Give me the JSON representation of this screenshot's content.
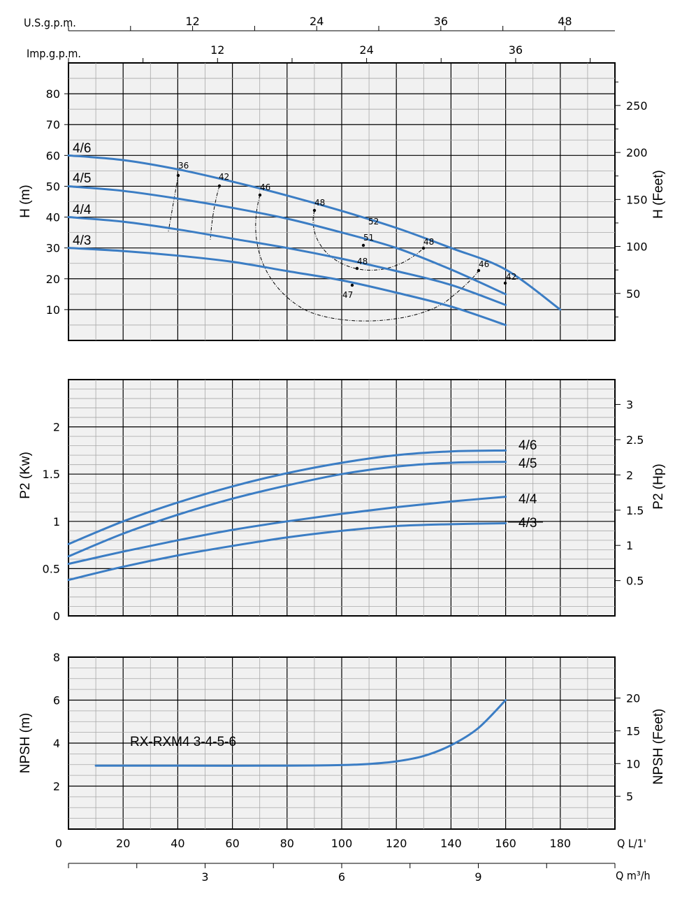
{
  "top_axes": {
    "us_gpm": {
      "label": "U.S.g.p.m.",
      "ticks": [
        "12",
        "24",
        "36",
        "48"
      ]
    },
    "imp_gpm": {
      "label": "Imp.g.p.m.",
      "ticks": [
        "12",
        "24",
        "36"
      ]
    }
  },
  "bottom_axes": {
    "q_lmin": {
      "label": "Q L/1'",
      "ticks": [
        "0",
        "20",
        "40",
        "60",
        "80",
        "100",
        "120",
        "140",
        "160",
        "180"
      ]
    },
    "q_m3h": {
      "label": "Q m³/h",
      "ticks": [
        "3",
        "6",
        "9"
      ]
    }
  },
  "chart_data": [
    {
      "type": "line",
      "panel": "head",
      "ylabel": "H (m)",
      "ylabel_right": "H (Feet)",
      "xlim": [
        0,
        200
      ],
      "ylim": [
        0,
        90
      ],
      "yticks": [
        10,
        20,
        30,
        40,
        50,
        60,
        70,
        80
      ],
      "yticks_right": [
        50,
        100,
        150,
        200,
        250
      ],
      "series": [
        {
          "name": "4/6",
          "x": [
            0,
            20,
            40,
            60,
            80,
            100,
            120,
            140,
            160,
            180
          ],
          "values": [
            60,
            58.5,
            55.5,
            51.5,
            47,
            42,
            36.5,
            30,
            23,
            10
          ]
        },
        {
          "name": "4/5",
          "x": [
            0,
            20,
            40,
            60,
            80,
            100,
            120,
            140,
            160
          ],
          "values": [
            50,
            48.5,
            46,
            43,
            39.5,
            35,
            30,
            23,
            15
          ]
        },
        {
          "name": "4/4",
          "x": [
            0,
            20,
            40,
            60,
            80,
            100,
            120,
            140,
            160
          ],
          "values": [
            40,
            38.5,
            36,
            33,
            30,
            26.5,
            22.5,
            18,
            11.5
          ]
        },
        {
          "name": "4/3",
          "x": [
            0,
            20,
            40,
            60,
            80,
            100,
            120,
            140,
            160
          ],
          "values": [
            30,
            29,
            27.5,
            25.5,
            22.5,
            19.5,
            15.5,
            11,
            5
          ]
        }
      ],
      "efficiency_labels": [
        "36",
        "42",
        "46",
        "48",
        "52",
        "51",
        "48",
        "47",
        "48",
        "46",
        "42"
      ]
    },
    {
      "type": "line",
      "panel": "power",
      "ylabel": "P2 (Kw)",
      "ylabel_right": "P2 (Hp)",
      "xlim": [
        0,
        200
      ],
      "ylim": [
        0,
        2.5
      ],
      "yticks": [
        "0",
        "0.5",
        "1",
        "1.5",
        "2"
      ],
      "yticks_right": [
        "0.5",
        "1",
        "1.5",
        "2",
        "2.5",
        "3"
      ],
      "series": [
        {
          "name": "4/6",
          "x": [
            0,
            20,
            40,
            60,
            80,
            100,
            120,
            140,
            160
          ],
          "values": [
            0.76,
            1.0,
            1.2,
            1.37,
            1.51,
            1.62,
            1.7,
            1.74,
            1.75
          ]
        },
        {
          "name": "4/5",
          "x": [
            0,
            20,
            40,
            60,
            80,
            100,
            120,
            140,
            160
          ],
          "values": [
            0.63,
            0.87,
            1.07,
            1.24,
            1.38,
            1.5,
            1.58,
            1.62,
            1.63
          ]
        },
        {
          "name": "4/4",
          "x": [
            0,
            20,
            40,
            60,
            80,
            100,
            120,
            140,
            160
          ],
          "values": [
            0.55,
            0.68,
            0.8,
            0.91,
            1.0,
            1.08,
            1.15,
            1.21,
            1.26
          ]
        },
        {
          "name": "4/3",
          "x": [
            0,
            20,
            40,
            60,
            80,
            100,
            120,
            140,
            160
          ],
          "values": [
            0.38,
            0.52,
            0.64,
            0.74,
            0.83,
            0.9,
            0.95,
            0.97,
            0.98
          ]
        }
      ]
    },
    {
      "type": "line",
      "panel": "npsh",
      "ylabel": "NPSH (m)",
      "ylabel_right": "NPSH (Feet)",
      "annotation": "RX-RXM4 3-4-5-6",
      "xlim": [
        0,
        200
      ],
      "ylim": [
        0,
        8
      ],
      "yticks": [
        "2",
        "4",
        "6",
        "8"
      ],
      "yticks_right": [
        "5",
        "10",
        "15",
        "20"
      ],
      "series": [
        {
          "x": [
            10,
            40,
            80,
            100,
            110,
            120,
            130,
            140,
            150,
            160
          ],
          "values": [
            2.95,
            2.95,
            2.95,
            2.98,
            3.03,
            3.15,
            3.4,
            3.9,
            4.7,
            6.0
          ]
        }
      ]
    }
  ]
}
